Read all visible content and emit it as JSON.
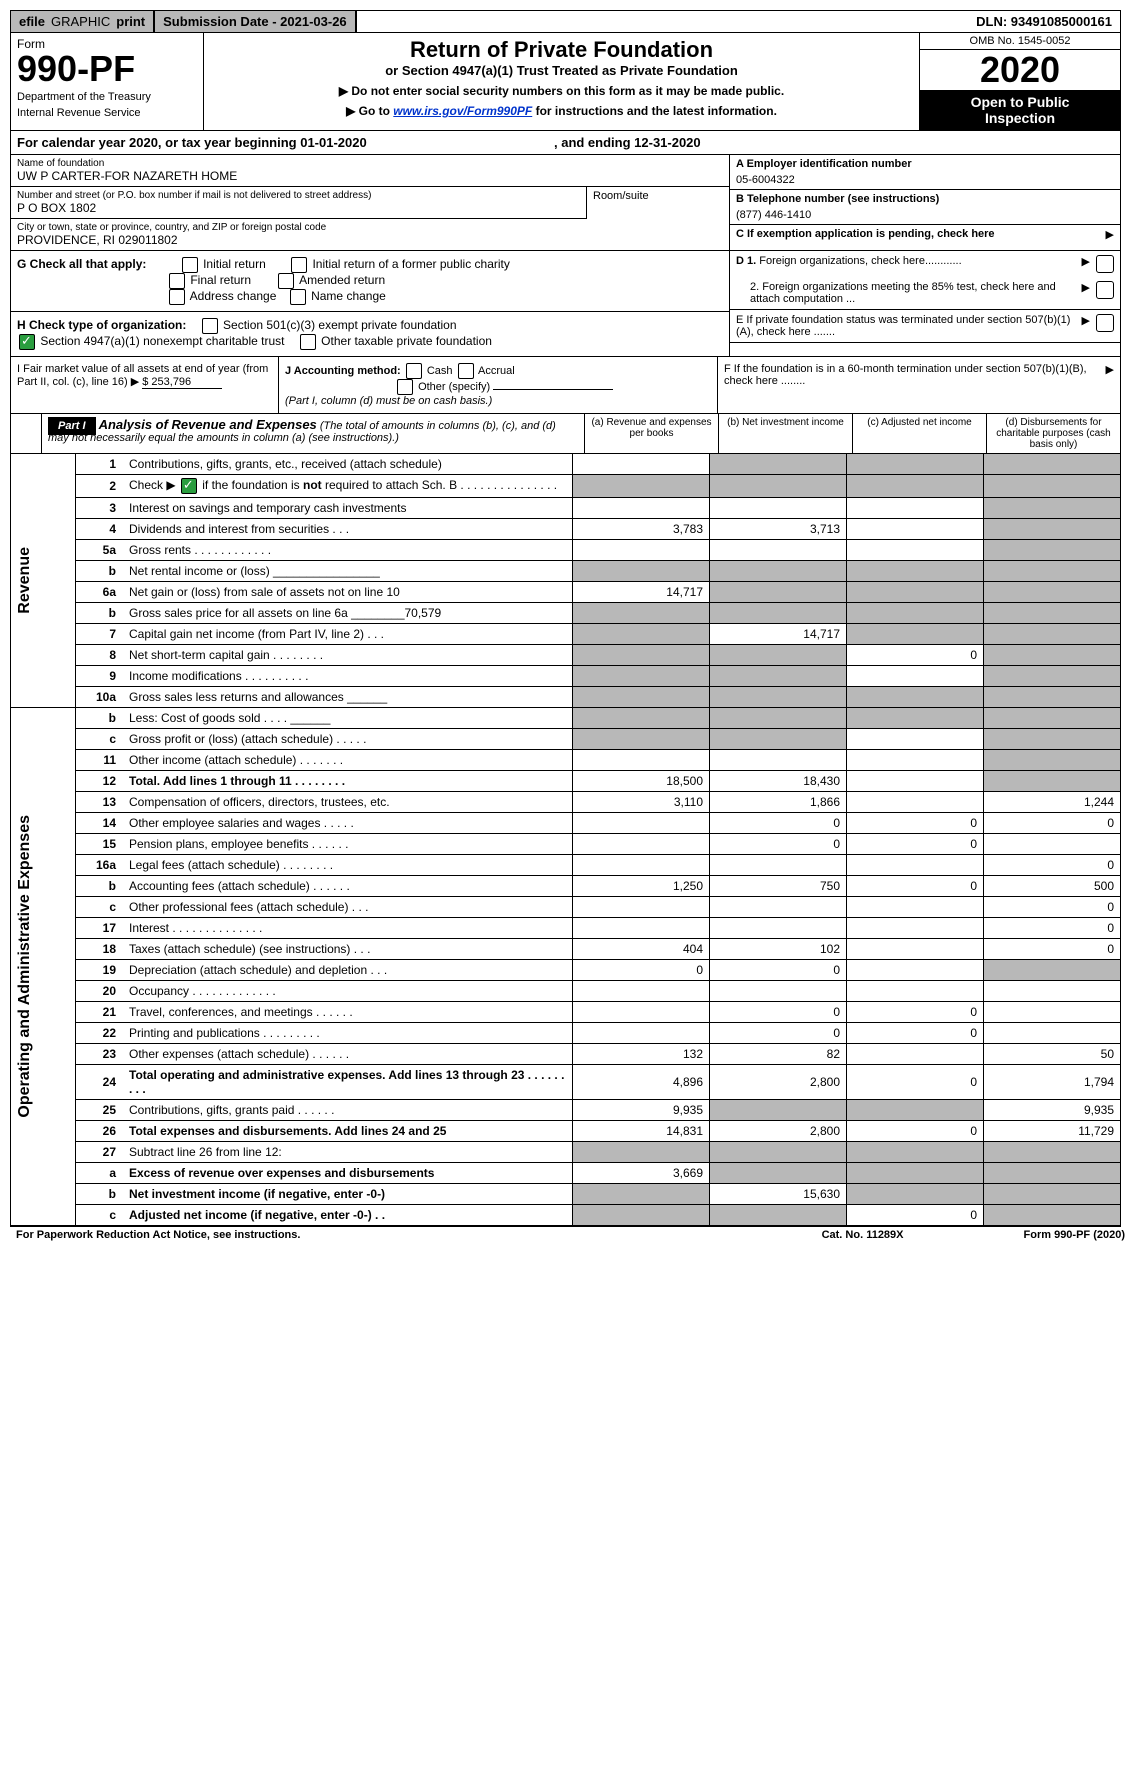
{
  "top": {
    "efile": "efile",
    "graphic": "GRAPHIC",
    "print": "print",
    "submission": "Submission Date - 2021-03-26",
    "dln": "DLN: 93491085000161"
  },
  "header": {
    "form_word": "Form",
    "form_number": "990-PF",
    "dept1": "Department of the Treasury",
    "dept2": "Internal Revenue Service",
    "title": "Return of Private Foundation",
    "subtitle": "or Section 4947(a)(1) Trust Treated as Private Foundation",
    "instr1": "▶ Do not enter social security numbers on this form as it may be made public.",
    "instr2_pre": "▶ Go to ",
    "instr2_link": "www.irs.gov/Form990PF",
    "instr2_post": " for instructions and the latest information.",
    "omb": "OMB No. 1545-0052",
    "year": "2020",
    "open1": "Open to Public",
    "open2": "Inspection"
  },
  "calendar": "For calendar year 2020, or tax year beginning 01-01-2020",
  "calendar_end": ", and ending 12-31-2020",
  "meta": {
    "name_label": "Name of foundation",
    "name": "UW P CARTER-FOR NAZARETH HOME",
    "addr_label": "Number and street (or P.O. box number if mail is not delivered to street address)",
    "addr": "P O BOX 1802",
    "suite_label": "Room/suite",
    "city_label": "City or town, state or province, country, and ZIP or foreign postal code",
    "city": "PROVIDENCE, RI  029011802",
    "a_label": "A Employer identification number",
    "a_val": "05-6004322",
    "b_label": "B Telephone number (see instructions)",
    "b_val": "(877) 446-1410",
    "c_label": "C If exemption application is pending, check here"
  },
  "checks": {
    "g_label": "G Check all that apply:",
    "g_items": [
      "Initial return",
      "Initial return of a former public charity",
      "Final return",
      "Amended return",
      "Address change",
      "Name change"
    ],
    "h_label": "H Check type of organization:",
    "h_1": "Section 501(c)(3) exempt private foundation",
    "h_2": "Section 4947(a)(1) nonexempt charitable trust",
    "h_3": "Other taxable private foundation",
    "i_label": "I Fair market value of all assets at end of year (from Part II, col. (c), line 16) ▶",
    "i_val": "$  253,796",
    "j_label": "J Accounting method:",
    "j_cash": "Cash",
    "j_accrual": "Accrual",
    "j_other": "Other (specify)",
    "j_note": "(Part I, column (d) must be on cash basis.)",
    "d1": "D 1. Foreign organizations, check here............",
    "d2": "2. Foreign organizations meeting the 85% test, check here and attach computation ...",
    "e": "E If private foundation status was terminated under section 507(b)(1)(A), check here .......",
    "f": "F If the foundation is in a 60-month termination under section 507(b)(1)(B), check here ........"
  },
  "part1": {
    "label": "Part I",
    "title": "Analysis of Revenue and Expenses",
    "note": "(The total of amounts in columns (b), (c), and (d) may not necessarily equal the amounts in column (a) (see instructions).)",
    "col_a": "(a)   Revenue and expenses per books",
    "col_b": "(b)   Net investment income",
    "col_c": "(c)   Adjusted net income",
    "col_d": "(d)   Disbursements for charitable purposes (cash basis only)"
  },
  "sides": {
    "revenue": "Revenue",
    "expenses": "Operating and Administrative Expenses"
  },
  "lines": [
    {
      "n": "1",
      "d": "Contributions, gifts, grants, etc., received (attach schedule)",
      "a": "",
      "b": "s",
      "c": "s",
      "dd": "s"
    },
    {
      "n": "2",
      "d": "Check ▶ ☑ if the foundation is not required to attach Sch. B",
      "dots": true,
      "a": "s",
      "b": "s",
      "c": "s",
      "dd": "s",
      "bold_not": true
    },
    {
      "n": "3",
      "d": "Interest on savings and temporary cash investments",
      "a": "",
      "b": "",
      "c": "",
      "dd": "s"
    },
    {
      "n": "4",
      "d": "Dividends and interest from securities   .   .   .",
      "a": "3,783",
      "b": "3,713",
      "c": "",
      "dd": "s"
    },
    {
      "n": "5a",
      "d": "Gross rents   .   .   .   .   .   .   .   .   .   .   .   .",
      "a": "",
      "b": "",
      "c": "",
      "dd": "s"
    },
    {
      "n": "b",
      "d": "Net rental income or (loss)  ________________",
      "a": "s",
      "b": "s",
      "c": "s",
      "dd": "s"
    },
    {
      "n": "6a",
      "d": "Net gain or (loss) from sale of assets not on line 10",
      "a": "14,717",
      "b": "s",
      "c": "s",
      "dd": "s"
    },
    {
      "n": "b",
      "d": "Gross sales price for all assets on line 6a  ________70,579",
      "a": "s",
      "b": "s",
      "c": "s",
      "dd": "s"
    },
    {
      "n": "7",
      "d": "Capital gain net income (from Part IV, line 2)   .   .   .",
      "a": "s",
      "b": "14,717",
      "c": "s",
      "dd": "s"
    },
    {
      "n": "8",
      "d": "Net short-term capital gain   .   .   .   .   .   .   .   .",
      "a": "s",
      "b": "s",
      "c": "0",
      "dd": "s"
    },
    {
      "n": "9",
      "d": "Income modifications   .   .   .   .   .   .   .   .   .   .",
      "a": "s",
      "b": "s",
      "c": "",
      "dd": "s"
    },
    {
      "n": "10a",
      "d": "Gross sales less returns and allowances  ______",
      "a": "s",
      "b": "s",
      "c": "s",
      "dd": "s"
    },
    {
      "n": "b",
      "d": "Less: Cost of goods sold   .   .   .   .  ______",
      "a": "s",
      "b": "s",
      "c": "s",
      "dd": "s"
    },
    {
      "n": "c",
      "d": "Gross profit or (loss) (attach schedule)   .   .   .   .   .",
      "a": "s",
      "b": "s",
      "c": "",
      "dd": "s"
    },
    {
      "n": "11",
      "d": "Other income (attach schedule)   .   .   .   .   .   .   .",
      "a": "",
      "b": "",
      "c": "",
      "dd": "s"
    },
    {
      "n": "12",
      "d": "Total. Add lines 1 through 11   .   .   .   .   .   .   .   .",
      "a": "18,500",
      "b": "18,430",
      "c": "",
      "dd": "s",
      "bold": true
    },
    {
      "n": "13",
      "d": "Compensation of officers, directors, trustees, etc.",
      "a": "3,110",
      "b": "1,866",
      "c": "",
      "dd": "1,244",
      "sec": "exp"
    },
    {
      "n": "14",
      "d": "Other employee salaries and wages   .   .   .   .   .",
      "a": "",
      "b": "0",
      "c": "0",
      "dd": "0"
    },
    {
      "n": "15",
      "d": "Pension plans, employee benefits   .   .   .   .   .   .",
      "a": "",
      "b": "0",
      "c": "0",
      "dd": ""
    },
    {
      "n": "16a",
      "d": "Legal fees (attach schedule)   .   .   .   .   .   .   .   .",
      "a": "",
      "b": "",
      "c": "",
      "dd": "0"
    },
    {
      "n": "b",
      "d": "Accounting fees (attach schedule)   .   .   .   .   .   .",
      "a": "1,250",
      "b": "750",
      "c": "0",
      "dd": "500"
    },
    {
      "n": "c",
      "d": "Other professional fees (attach schedule)   .   .   .",
      "a": "",
      "b": "",
      "c": "",
      "dd": "0"
    },
    {
      "n": "17",
      "d": "Interest   .   .   .   .   .   .   .   .   .   .   .   .   .   .",
      "a": "",
      "b": "",
      "c": "",
      "dd": "0"
    },
    {
      "n": "18",
      "d": "Taxes (attach schedule) (see instructions)   .   .   .",
      "a": "404",
      "b": "102",
      "c": "",
      "dd": "0"
    },
    {
      "n": "19",
      "d": "Depreciation (attach schedule) and depletion   .   .   .",
      "a": "0",
      "b": "0",
      "c": "",
      "dd": "s"
    },
    {
      "n": "20",
      "d": "Occupancy   .   .   .   .   .   .   .   .   .   .   .   .   .",
      "a": "",
      "b": "",
      "c": "",
      "dd": ""
    },
    {
      "n": "21",
      "d": "Travel, conferences, and meetings   .   .   .   .   .   .",
      "a": "",
      "b": "0",
      "c": "0",
      "dd": ""
    },
    {
      "n": "22",
      "d": "Printing and publications   .   .   .   .   .   .   .   .   .",
      "a": "",
      "b": "0",
      "c": "0",
      "dd": ""
    },
    {
      "n": "23",
      "d": "Other expenses (attach schedule)   .   .   .   .   .   .",
      "a": "132",
      "b": "82",
      "c": "",
      "dd": "50"
    },
    {
      "n": "24",
      "d": "Total operating and administrative expenses. Add lines 13 through 23   .   .   .   .   .   .   .   .   .",
      "a": "4,896",
      "b": "2,800",
      "c": "0",
      "dd": "1,794",
      "bold": true
    },
    {
      "n": "25",
      "d": "Contributions, gifts, grants paid   .   .   .   .   .   .",
      "a": "9,935",
      "b": "s",
      "c": "s",
      "dd": "9,935"
    },
    {
      "n": "26",
      "d": "Total expenses and disbursements. Add lines 24 and 25",
      "a": "14,831",
      "b": "2,800",
      "c": "0",
      "dd": "11,729",
      "bold": true
    },
    {
      "n": "27",
      "d": "Subtract line 26 from line 12:",
      "a": "s",
      "b": "s",
      "c": "s",
      "dd": "s"
    },
    {
      "n": "a",
      "d": "Excess of revenue over expenses and disbursements",
      "a": "3,669",
      "b": "s",
      "c": "s",
      "dd": "s",
      "bold": true
    },
    {
      "n": "b",
      "d": "Net investment income (if negative, enter -0-)",
      "a": "s",
      "b": "15,630",
      "c": "s",
      "dd": "s",
      "bold": true
    },
    {
      "n": "c",
      "d": "Adjusted net income (if negative, enter -0-)   .   .",
      "a": "s",
      "b": "s",
      "c": "0",
      "dd": "s",
      "bold": true
    }
  ],
  "footer": {
    "left": "For Paperwork Reduction Act Notice, see instructions.",
    "mid": "Cat. No. 11289X",
    "right": "Form 990-PF (2020)"
  }
}
